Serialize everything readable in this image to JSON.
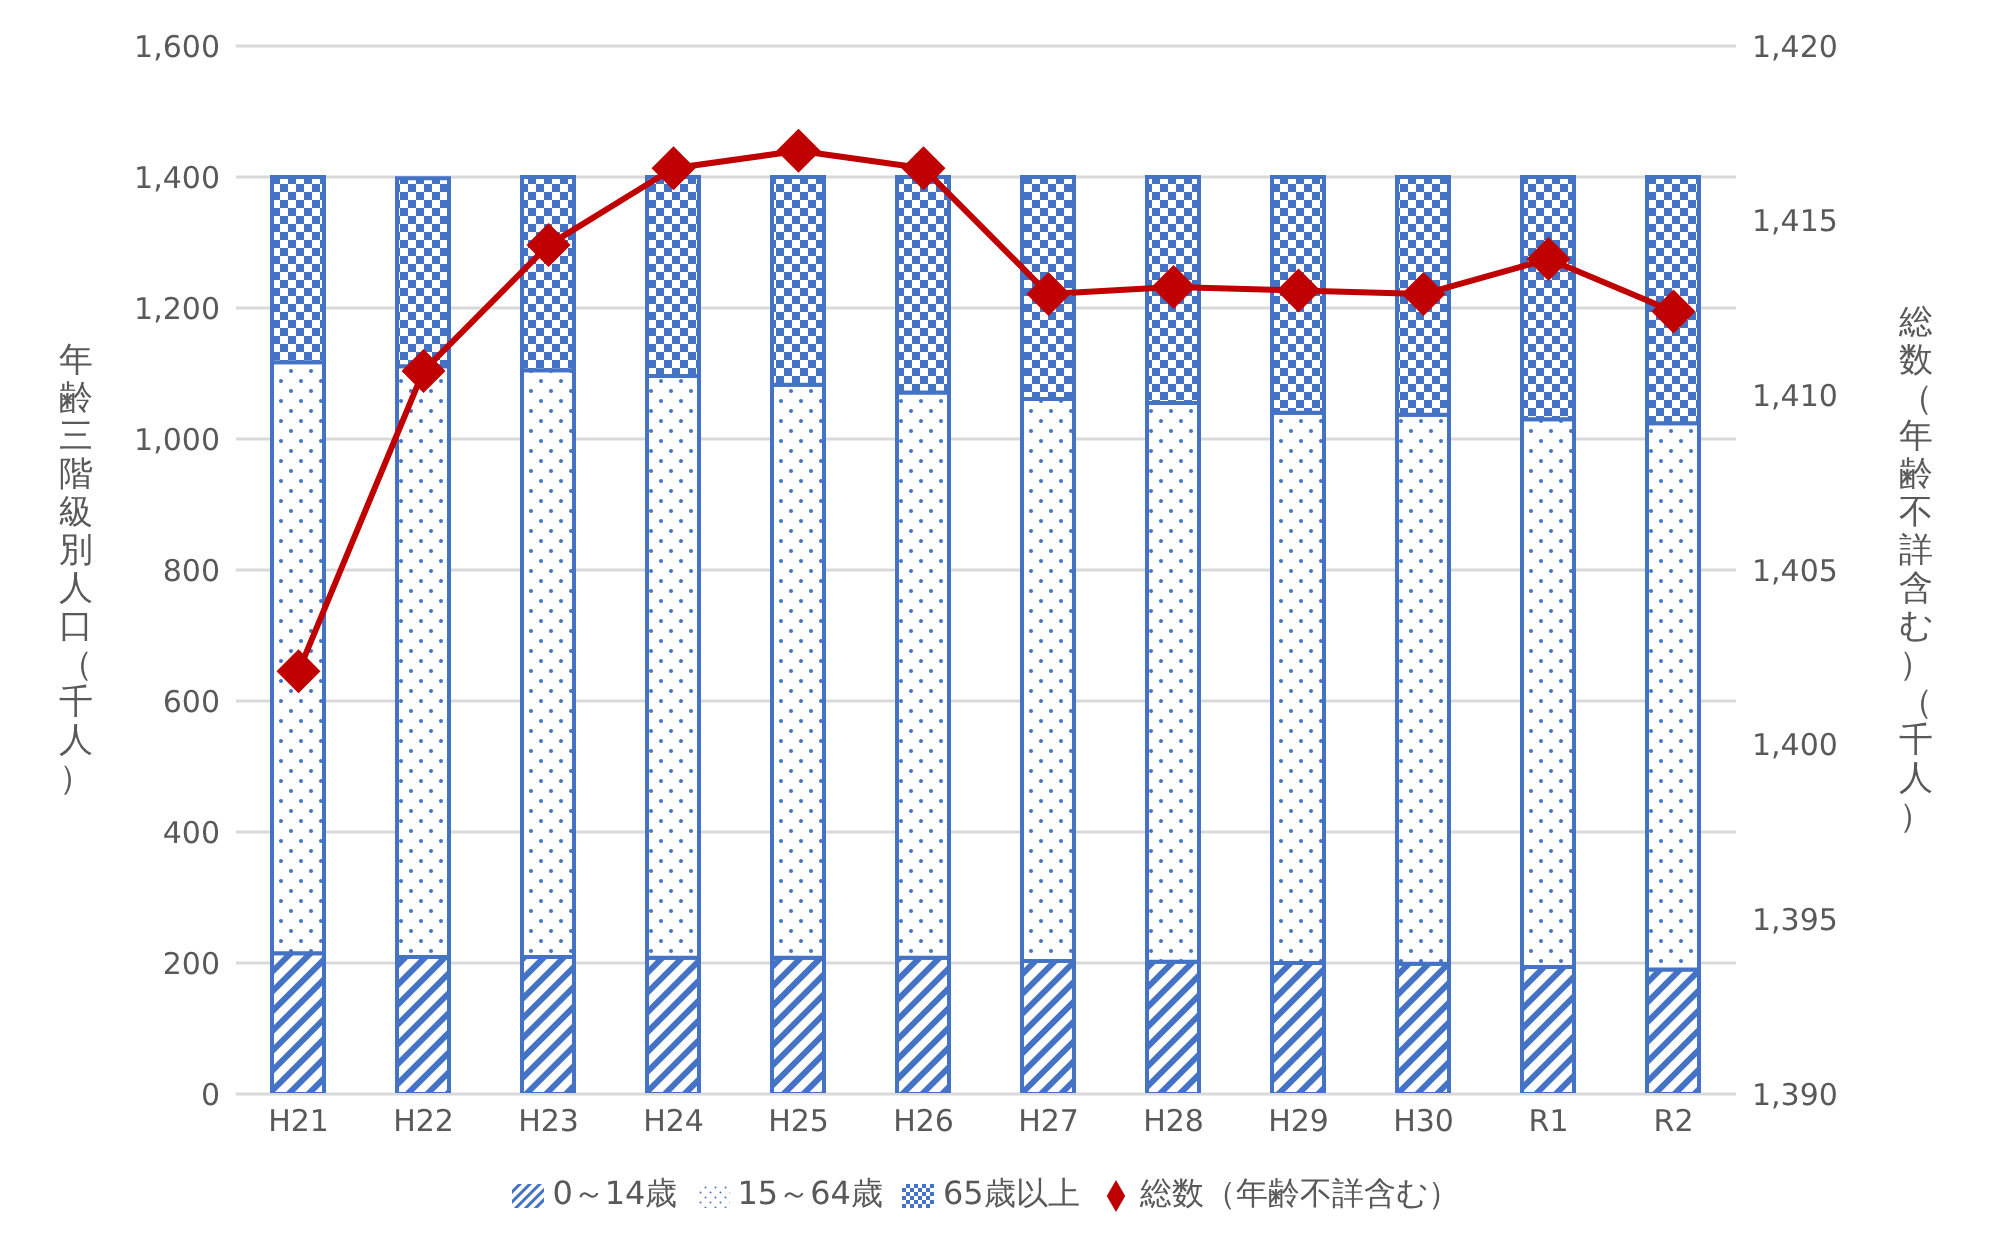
{
  "chart_data": {
    "type": "bar",
    "stacked": true,
    "categories": [
      "H21",
      "H22",
      "H23",
      "H24",
      "H25",
      "H26",
      "H27",
      "H28",
      "H29",
      "H30",
      "R1",
      "R2"
    ],
    "series": [
      {
        "name": "0～14歳",
        "color": "#4472c4",
        "values": [
          215,
          209,
          209,
          208,
          208,
          208,
          203,
          202,
          200,
          199,
          194,
          190
        ]
      },
      {
        "name": "15～64歳",
        "color": "#4472c4",
        "values": [
          902,
          902,
          896,
          888,
          875,
          863,
          858,
          853,
          840,
          838,
          836,
          834
        ]
      },
      {
        "name": "65歳以上",
        "color": "#4472c4",
        "values": [
          283,
          287,
          295,
          304,
          317,
          329,
          339,
          345,
          360,
          363,
          370,
          376
        ]
      },
      {
        "name": "総数（年齢不詳含む）",
        "type": "line",
        "axis": "y2",
        "color": "#c00000",
        "marker": "diamond",
        "values": [
          1402.1,
          1410.7,
          1414.3,
          1416.5,
          1417.0,
          1416.5,
          1412.9,
          1413.1,
          1413.0,
          1412.9,
          1413.9,
          1412.4
        ]
      }
    ],
    "ylabel": "年齢三階級別人口（千人）",
    "y2label": "総数（年齢不詳含む）（千人）",
    "ylim": [
      0,
      1600
    ],
    "yticks": [
      {
        "value": 0,
        "label": "0"
      },
      {
        "value": 200,
        "label": "200"
      },
      {
        "value": 400,
        "label": "400"
      },
      {
        "value": 600,
        "label": "600"
      },
      {
        "value": 800,
        "label": "800"
      },
      {
        "value": 1000,
        "label": "1,000"
      },
      {
        "value": 1200,
        "label": "1,200"
      },
      {
        "value": 1400,
        "label": "1,400"
      },
      {
        "value": 1600,
        "label": "1,600"
      }
    ],
    "y2lim": [
      1390,
      1420
    ],
    "y2ticks": [
      {
        "value": 1390,
        "label": "1,390"
      },
      {
        "value": 1395,
        "label": "1,395"
      },
      {
        "value": 1400,
        "label": "1,400"
      },
      {
        "value": 1405,
        "label": "1,405"
      },
      {
        "value": 1410,
        "label": "1,410"
      },
      {
        "value": 1415,
        "label": "1,415"
      },
      {
        "value": 1420,
        "label": "1,420"
      }
    ],
    "grid": "y",
    "legend": "bottom"
  }
}
